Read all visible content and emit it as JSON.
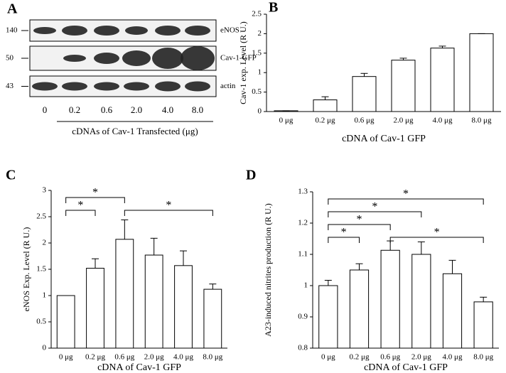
{
  "blot": {
    "panel": "A",
    "rows": [
      {
        "mw": "140",
        "label": "eNOS"
      },
      {
        "mw": "50",
        "label": "Cav-1-GFP"
      },
      {
        "mw": "43",
        "label": "actin"
      }
    ],
    "lanes": [
      "0",
      "0.2",
      "0.6",
      "2.0",
      "4.0",
      "8.0"
    ],
    "xlabel": "cDNAs of Cav-1 Transfected (μg)"
  },
  "chart_data": [
    {
      "type": "bar",
      "panel": "B",
      "ylabel": "Cav-1 exp. Level (R U.)",
      "xlabel": "cDNA of Cav-1 GFP",
      "categories": [
        "0 μg",
        "0.2 μg",
        "0.6 μg",
        "2.0 μg",
        "4.0 μg",
        "8.0 μg"
      ],
      "values": [
        0.02,
        0.3,
        0.9,
        1.32,
        1.63,
        2.0
      ],
      "errors": [
        0,
        0.08,
        0.08,
        0.05,
        0.05,
        0
      ],
      "ylim": [
        0,
        2.5
      ],
      "yticks": [
        0,
        0.5,
        1,
        1.5,
        2,
        2.5
      ],
      "color": "#ffffff",
      "significance": []
    },
    {
      "type": "bar",
      "panel": "C",
      "ylabel": "eNOS Exp. Level (R U.)",
      "xlabel": "cDNA of Cav-1 GFP",
      "categories": [
        "0 μg",
        "0.2 μg",
        "0.6 μg",
        "2.0 μg",
        "4.0 μg",
        "8.0 μg"
      ],
      "values": [
        1.0,
        1.52,
        2.07,
        1.77,
        1.57,
        1.12
      ],
      "errors": [
        0,
        0.18,
        0.37,
        0.32,
        0.28,
        0.1
      ],
      "ylim": [
        0,
        3
      ],
      "yticks": [
        0,
        0.5,
        1,
        1.5,
        2,
        2.5,
        3
      ],
      "color": "#ffffff",
      "significance": [
        {
          "between": [
            0,
            1
          ],
          "label": "*"
        },
        {
          "between": [
            0,
            2
          ],
          "label": "*"
        },
        {
          "between": [
            2,
            5
          ],
          "label": "*"
        }
      ]
    },
    {
      "type": "bar",
      "panel": "D",
      "ylabel": "A23-induced nitrites production (R U.)",
      "xlabel": "cDNA of Cav-1 GFP",
      "categories": [
        "0 μg",
        "0.2 μg",
        "0.6 μg",
        "2.0 μg",
        "4.0 μg",
        "8.0 μg"
      ],
      "values": [
        1.0,
        1.05,
        1.113,
        1.1,
        1.038,
        0.948
      ],
      "errors": [
        0.017,
        0.02,
        0.03,
        0.04,
        0.043,
        0.015
      ],
      "ylim": [
        0.8,
        1.3
      ],
      "yticks": [
        0.8,
        0.9,
        1,
        1.1,
        1.2,
        1.3
      ],
      "color": "#ffffff",
      "significance": [
        {
          "between": [
            0,
            1
          ],
          "label": "*"
        },
        {
          "between": [
            0,
            2
          ],
          "label": "*"
        },
        {
          "between": [
            2,
            5
          ],
          "label": "*"
        },
        {
          "between": [
            0,
            3
          ],
          "label": "*"
        },
        {
          "between": [
            0,
            5
          ],
          "label": "*"
        }
      ]
    }
  ]
}
